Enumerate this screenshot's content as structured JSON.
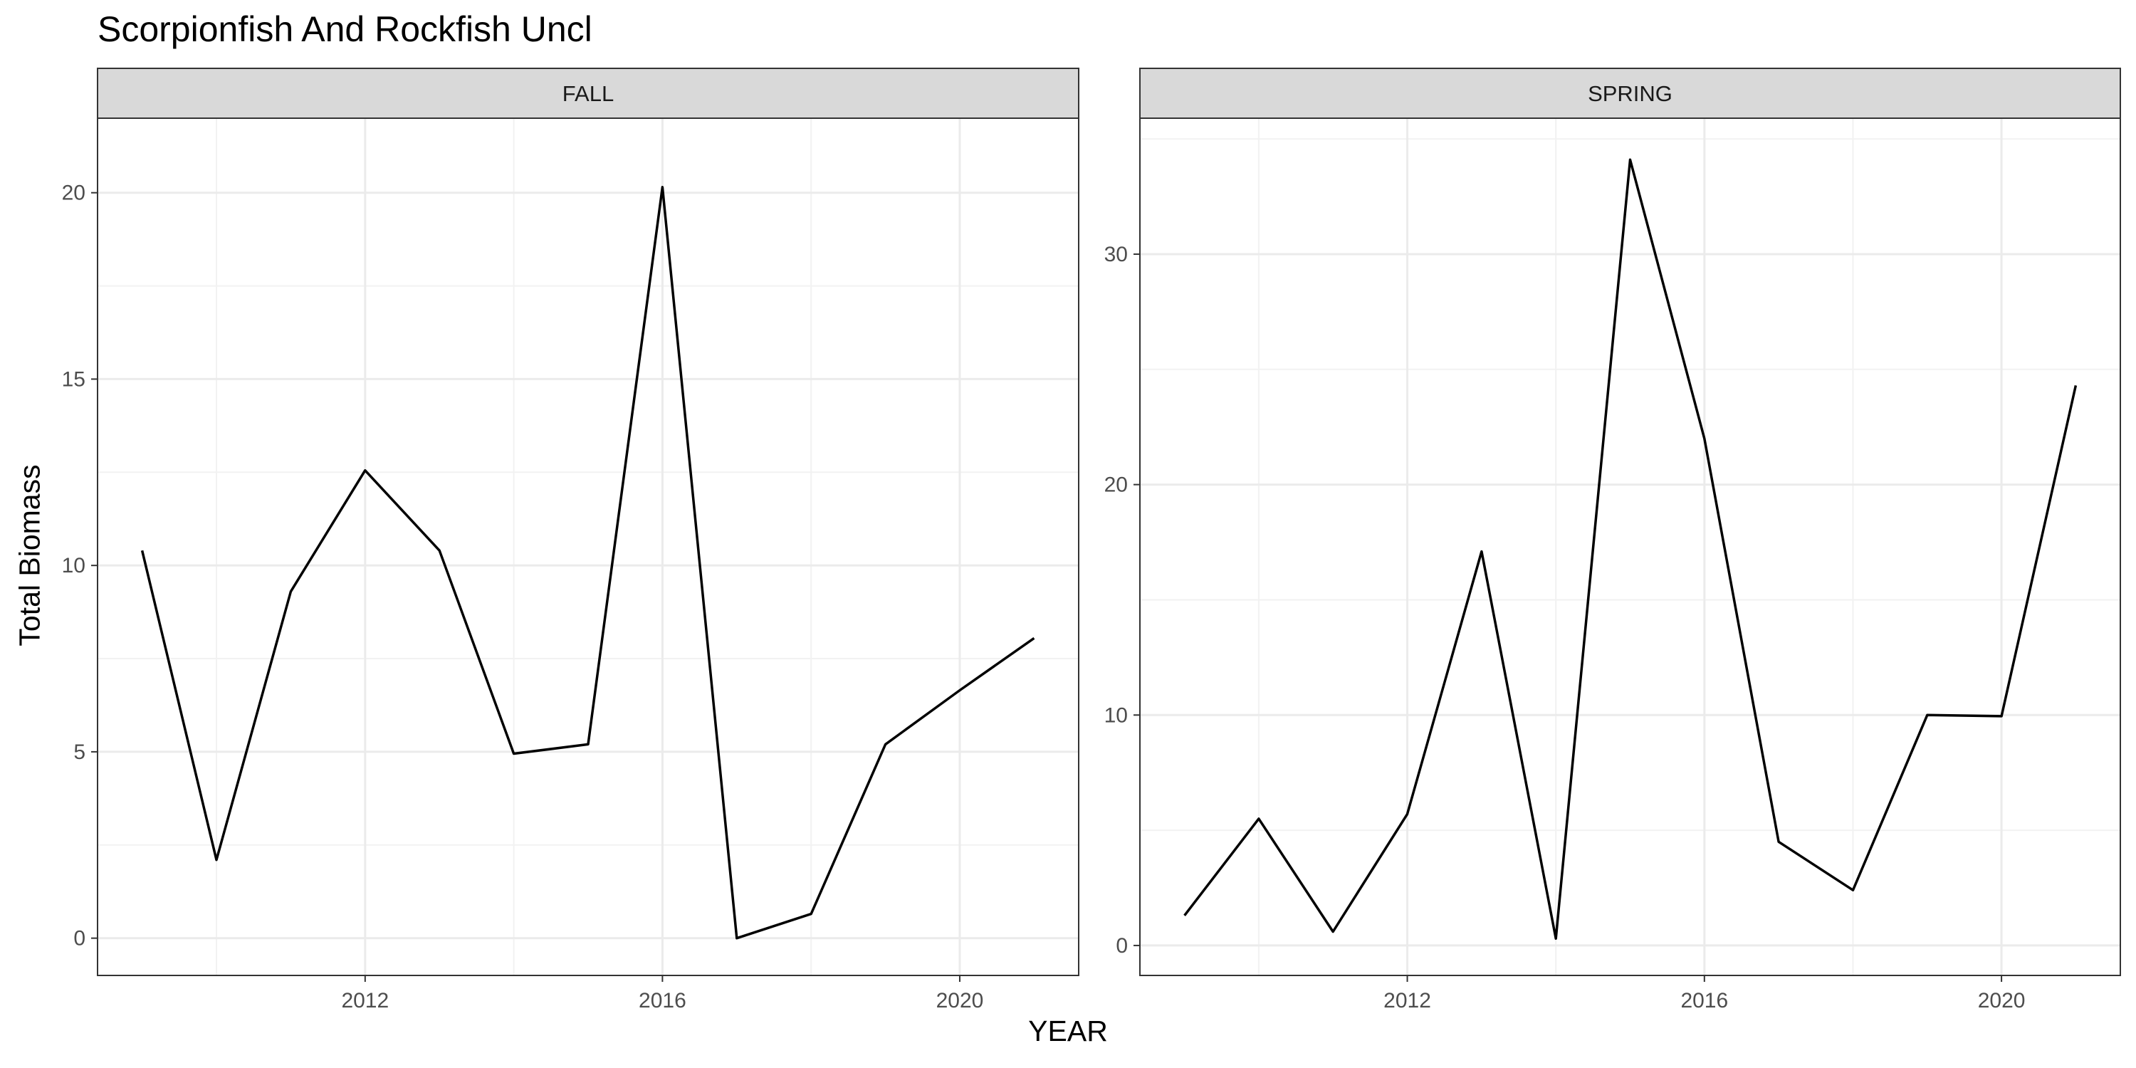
{
  "chart_data": {
    "type": "line",
    "title": "Scorpionfish And Rockfish Uncl",
    "xlabel": "YEAR",
    "ylabel": "Total Biomass",
    "xlim": [
      2008.4,
      2021.6
    ],
    "x_ticks": [
      2012,
      2016,
      2020
    ],
    "grid": true,
    "panels": [
      {
        "name": "FALL",
        "ylim": [
          -1.0,
          22.0
        ],
        "y_ticks": [
          0,
          5,
          10,
          15,
          20
        ],
        "x": [
          2009,
          2010,
          2011,
          2012,
          2013,
          2014,
          2015,
          2016,
          2017,
          2018,
          2019,
          2020,
          2021
        ],
        "values": [
          10.4,
          2.1,
          9.3,
          12.55,
          10.4,
          4.95,
          5.2,
          20.15,
          0.0,
          0.65,
          5.2,
          6.65,
          8.05
        ]
      },
      {
        "name": "SPRING",
        "ylim": [
          -1.3,
          35.9
        ],
        "y_ticks": [
          0,
          10,
          20,
          30
        ],
        "x": [
          2009,
          2010,
          2011,
          2012,
          2013,
          2014,
          2015,
          2016,
          2017,
          2018,
          2019,
          2020,
          2021
        ],
        "values": [
          1.3,
          5.5,
          0.6,
          5.7,
          17.1,
          0.3,
          34.1,
          22.0,
          4.5,
          2.4,
          10.0,
          9.95,
          24.3
        ]
      }
    ]
  }
}
